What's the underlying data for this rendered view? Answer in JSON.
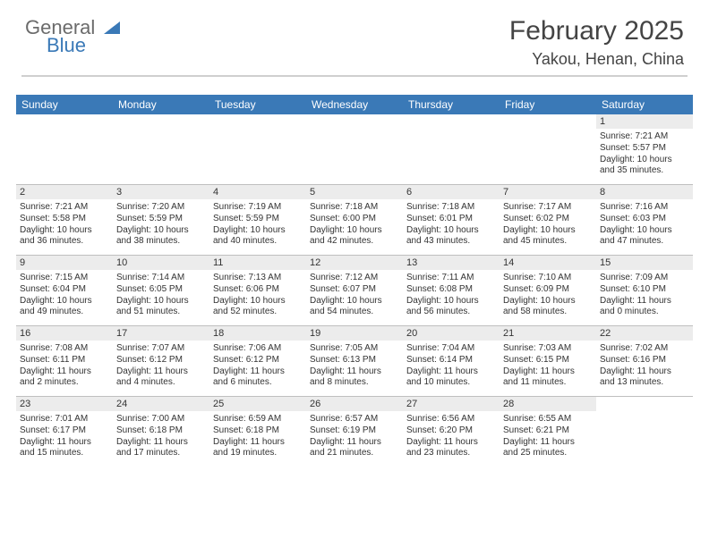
{
  "logo": {
    "line1": "General",
    "line2": "Blue"
  },
  "title": "February 2025",
  "location": "Yakou, Henan, China",
  "colors": {
    "header_bar": "#3a79b7",
    "header_text": "#ffffff",
    "daynum_bg": "#ececec",
    "rule": "#bfbfbf",
    "logo_gray": "#6b6b6b",
    "logo_blue": "#3a79b7"
  },
  "daysOfWeek": [
    "Sunday",
    "Monday",
    "Tuesday",
    "Wednesday",
    "Thursday",
    "Friday",
    "Saturday"
  ],
  "weeks": [
    [
      null,
      null,
      null,
      null,
      null,
      null,
      {
        "n": "1",
        "sr": "Sunrise: 7:21 AM",
        "ss": "Sunset: 5:57 PM",
        "dl1": "Daylight: 10 hours",
        "dl2": "and 35 minutes."
      }
    ],
    [
      {
        "n": "2",
        "sr": "Sunrise: 7:21 AM",
        "ss": "Sunset: 5:58 PM",
        "dl1": "Daylight: 10 hours",
        "dl2": "and 36 minutes."
      },
      {
        "n": "3",
        "sr": "Sunrise: 7:20 AM",
        "ss": "Sunset: 5:59 PM",
        "dl1": "Daylight: 10 hours",
        "dl2": "and 38 minutes."
      },
      {
        "n": "4",
        "sr": "Sunrise: 7:19 AM",
        "ss": "Sunset: 5:59 PM",
        "dl1": "Daylight: 10 hours",
        "dl2": "and 40 minutes."
      },
      {
        "n": "5",
        "sr": "Sunrise: 7:18 AM",
        "ss": "Sunset: 6:00 PM",
        "dl1": "Daylight: 10 hours",
        "dl2": "and 42 minutes."
      },
      {
        "n": "6",
        "sr": "Sunrise: 7:18 AM",
        "ss": "Sunset: 6:01 PM",
        "dl1": "Daylight: 10 hours",
        "dl2": "and 43 minutes."
      },
      {
        "n": "7",
        "sr": "Sunrise: 7:17 AM",
        "ss": "Sunset: 6:02 PM",
        "dl1": "Daylight: 10 hours",
        "dl2": "and 45 minutes."
      },
      {
        "n": "8",
        "sr": "Sunrise: 7:16 AM",
        "ss": "Sunset: 6:03 PM",
        "dl1": "Daylight: 10 hours",
        "dl2": "and 47 minutes."
      }
    ],
    [
      {
        "n": "9",
        "sr": "Sunrise: 7:15 AM",
        "ss": "Sunset: 6:04 PM",
        "dl1": "Daylight: 10 hours",
        "dl2": "and 49 minutes."
      },
      {
        "n": "10",
        "sr": "Sunrise: 7:14 AM",
        "ss": "Sunset: 6:05 PM",
        "dl1": "Daylight: 10 hours",
        "dl2": "and 51 minutes."
      },
      {
        "n": "11",
        "sr": "Sunrise: 7:13 AM",
        "ss": "Sunset: 6:06 PM",
        "dl1": "Daylight: 10 hours",
        "dl2": "and 52 minutes."
      },
      {
        "n": "12",
        "sr": "Sunrise: 7:12 AM",
        "ss": "Sunset: 6:07 PM",
        "dl1": "Daylight: 10 hours",
        "dl2": "and 54 minutes."
      },
      {
        "n": "13",
        "sr": "Sunrise: 7:11 AM",
        "ss": "Sunset: 6:08 PM",
        "dl1": "Daylight: 10 hours",
        "dl2": "and 56 minutes."
      },
      {
        "n": "14",
        "sr": "Sunrise: 7:10 AM",
        "ss": "Sunset: 6:09 PM",
        "dl1": "Daylight: 10 hours",
        "dl2": "and 58 minutes."
      },
      {
        "n": "15",
        "sr": "Sunrise: 7:09 AM",
        "ss": "Sunset: 6:10 PM",
        "dl1": "Daylight: 11 hours",
        "dl2": "and 0 minutes."
      }
    ],
    [
      {
        "n": "16",
        "sr": "Sunrise: 7:08 AM",
        "ss": "Sunset: 6:11 PM",
        "dl1": "Daylight: 11 hours",
        "dl2": "and 2 minutes."
      },
      {
        "n": "17",
        "sr": "Sunrise: 7:07 AM",
        "ss": "Sunset: 6:12 PM",
        "dl1": "Daylight: 11 hours",
        "dl2": "and 4 minutes."
      },
      {
        "n": "18",
        "sr": "Sunrise: 7:06 AM",
        "ss": "Sunset: 6:12 PM",
        "dl1": "Daylight: 11 hours",
        "dl2": "and 6 minutes."
      },
      {
        "n": "19",
        "sr": "Sunrise: 7:05 AM",
        "ss": "Sunset: 6:13 PM",
        "dl1": "Daylight: 11 hours",
        "dl2": "and 8 minutes."
      },
      {
        "n": "20",
        "sr": "Sunrise: 7:04 AM",
        "ss": "Sunset: 6:14 PM",
        "dl1": "Daylight: 11 hours",
        "dl2": "and 10 minutes."
      },
      {
        "n": "21",
        "sr": "Sunrise: 7:03 AM",
        "ss": "Sunset: 6:15 PM",
        "dl1": "Daylight: 11 hours",
        "dl2": "and 11 minutes."
      },
      {
        "n": "22",
        "sr": "Sunrise: 7:02 AM",
        "ss": "Sunset: 6:16 PM",
        "dl1": "Daylight: 11 hours",
        "dl2": "and 13 minutes."
      }
    ],
    [
      {
        "n": "23",
        "sr": "Sunrise: 7:01 AM",
        "ss": "Sunset: 6:17 PM",
        "dl1": "Daylight: 11 hours",
        "dl2": "and 15 minutes."
      },
      {
        "n": "24",
        "sr": "Sunrise: 7:00 AM",
        "ss": "Sunset: 6:18 PM",
        "dl1": "Daylight: 11 hours",
        "dl2": "and 17 minutes."
      },
      {
        "n": "25",
        "sr": "Sunrise: 6:59 AM",
        "ss": "Sunset: 6:18 PM",
        "dl1": "Daylight: 11 hours",
        "dl2": "and 19 minutes."
      },
      {
        "n": "26",
        "sr": "Sunrise: 6:57 AM",
        "ss": "Sunset: 6:19 PM",
        "dl1": "Daylight: 11 hours",
        "dl2": "and 21 minutes."
      },
      {
        "n": "27",
        "sr": "Sunrise: 6:56 AM",
        "ss": "Sunset: 6:20 PM",
        "dl1": "Daylight: 11 hours",
        "dl2": "and 23 minutes."
      },
      {
        "n": "28",
        "sr": "Sunrise: 6:55 AM",
        "ss": "Sunset: 6:21 PM",
        "dl1": "Daylight: 11 hours",
        "dl2": "and 25 minutes."
      },
      null
    ]
  ]
}
